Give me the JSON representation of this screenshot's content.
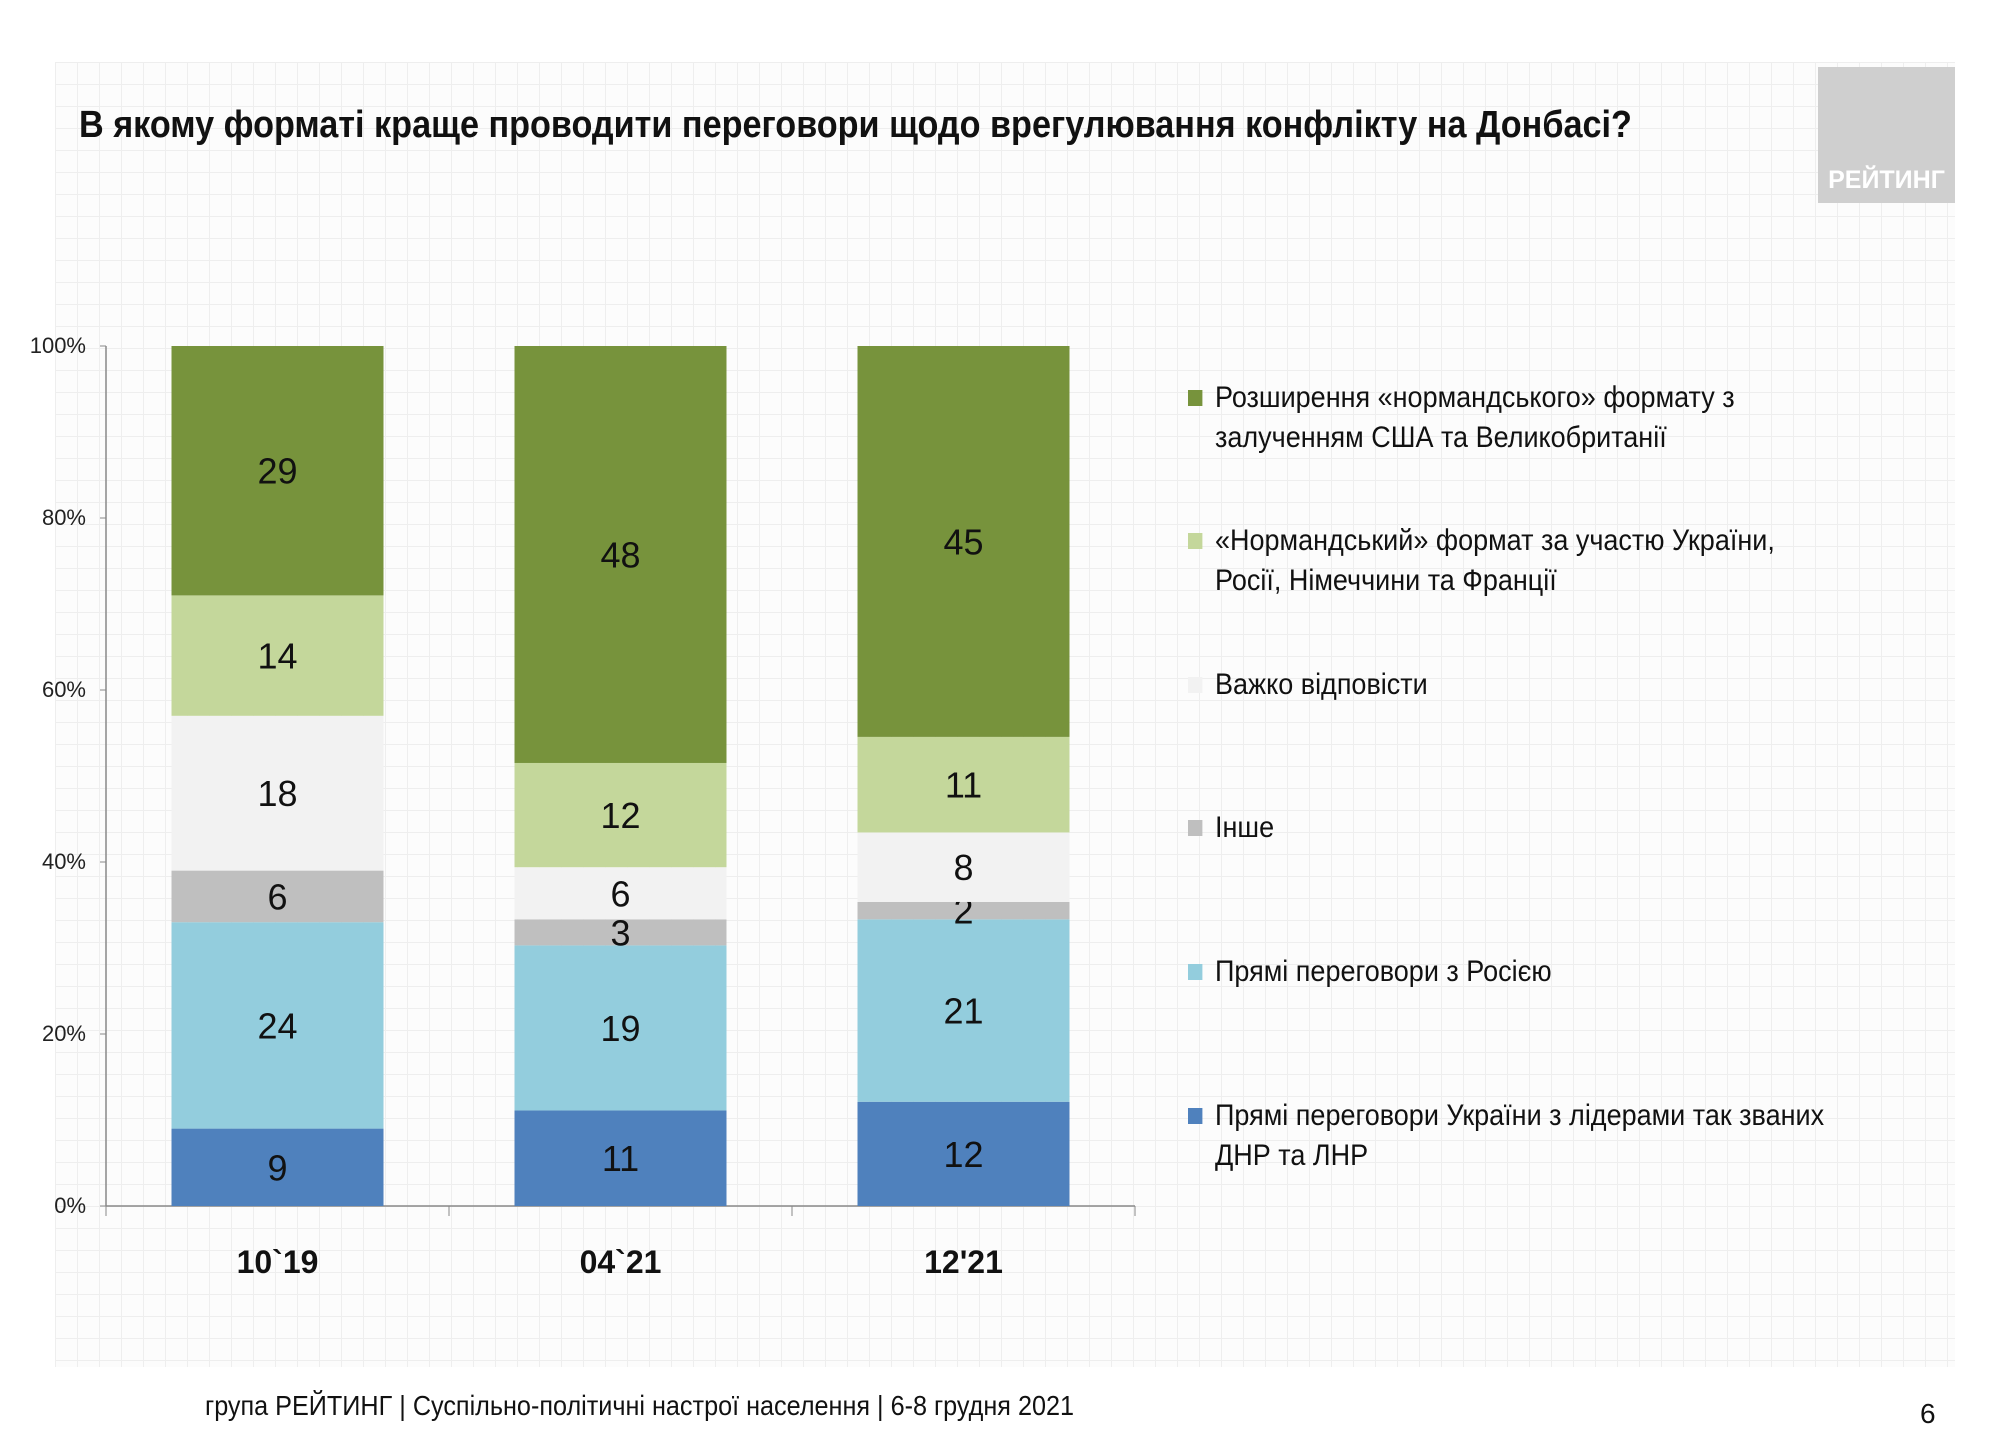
{
  "title": "В якому форматі краще проводити переговори щодо врегулювання конфлікту на Донбасі?",
  "logo_text": "РЕЙТИНГ",
  "footer": "група РЕЙТИНГ | Суспільно-політичні настрої населення  | 6-8 грудня 2021",
  "page_number": "6",
  "chart_data": {
    "type": "bar",
    "stacked": true,
    "normalized": true,
    "categories": [
      "10`19",
      "04`21",
      "12'21"
    ],
    "yticks": [
      "0%",
      "20%",
      "40%",
      "60%",
      "80%",
      "100%"
    ],
    "ylim": [
      0,
      100
    ],
    "legend_position": "right",
    "series": [
      {
        "name": "Прямі переговори України з лідерами так званих ДНР та ЛНР",
        "color": "#4f81bd",
        "values": [
          9,
          11,
          12
        ]
      },
      {
        "name": "Прямі переговори з Росією",
        "color": "#93cddd",
        "values": [
          24,
          19,
          21
        ]
      },
      {
        "name": "Інше",
        "color": "#bfbfbf",
        "values": [
          6,
          3,
          2
        ]
      },
      {
        "name": "Важко відповісти",
        "color": "#f2f2f2",
        "values": [
          18,
          6,
          8
        ]
      },
      {
        "name": "«Нормандський» формат за участю України, Росії, Німеччини та Франції",
        "color": "#c4d79b",
        "values": [
          14,
          12,
          11
        ]
      },
      {
        "name": "Розширення «нормандського» формату з залученням США та Великобританії",
        "color": "#77933c",
        "values": [
          29,
          48,
          45
        ]
      }
    ]
  }
}
